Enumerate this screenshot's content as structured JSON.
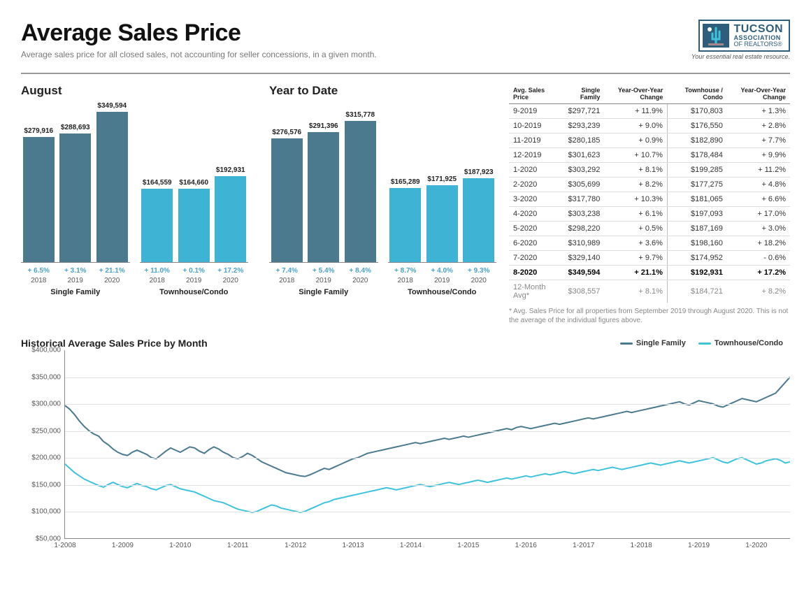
{
  "header": {
    "title": "Average Sales Price",
    "subtitle": "Average sales price for all closed sales, not accounting for seller concessions, in a given month."
  },
  "logo": {
    "line1": "TUCSON",
    "line2": "ASSOCIATION",
    "line3": "OF REALTORS®",
    "tagline": "Your essential real estate resource."
  },
  "colors": {
    "bar_dark": "#4b7a8f",
    "bar_light": "#3fb3d3",
    "line_sf": "#4b7a8f",
    "line_tc": "#3fc3dd",
    "grid": "#e3e3e3",
    "axis": "#888888",
    "pct_text": "#4aa3c7"
  },
  "barCharts": {
    "ymax": 360000,
    "sections": [
      {
        "title": "August",
        "groups": [
          {
            "label": "Single Family",
            "color": "#4b7a8f",
            "bars": [
              {
                "year": "2018",
                "value": 279916,
                "label": "$279,916",
                "pct": "+ 6.5%"
              },
              {
                "year": "2019",
                "value": 288693,
                "label": "$288,693",
                "pct": "+ 3.1%"
              },
              {
                "year": "2020",
                "value": 349594,
                "label": "$349,594",
                "pct": "+ 21.1%"
              }
            ]
          },
          {
            "label": "Townhouse/Condo",
            "color": "#3fb3d3",
            "bars": [
              {
                "year": "2018",
                "value": 164559,
                "label": "$164,559",
                "pct": "+ 11.0%"
              },
              {
                "year": "2019",
                "value": 164660,
                "label": "$164,660",
                "pct": "+ 0.1%"
              },
              {
                "year": "2020",
                "value": 192931,
                "label": "$192,931",
                "pct": "+ 17.2%"
              }
            ]
          }
        ]
      },
      {
        "title": "Year to Date",
        "groups": [
          {
            "label": "Single Family",
            "color": "#4b7a8f",
            "bars": [
              {
                "year": "2018",
                "value": 276576,
                "label": "$276,576",
                "pct": "+ 7.4%"
              },
              {
                "year": "2019",
                "value": 291396,
                "label": "$291,396",
                "pct": "+ 5.4%"
              },
              {
                "year": "2020",
                "value": 315778,
                "label": "$315,778",
                "pct": "+ 8.4%"
              }
            ]
          },
          {
            "label": "Townhouse/Condo",
            "color": "#3fb3d3",
            "bars": [
              {
                "year": "2018",
                "value": 165289,
                "label": "$165,289",
                "pct": "+ 8.7%"
              },
              {
                "year": "2019",
                "value": 171925,
                "label": "$171,925",
                "pct": "+ 4.0%"
              },
              {
                "year": "2020",
                "value": 187923,
                "label": "$187,923",
                "pct": "+ 9.3%"
              }
            ]
          }
        ]
      }
    ]
  },
  "table": {
    "headers": [
      "Avg. Sales Price",
      "Single Family",
      "Year-Over-Year Change",
      "Townhouse / Condo",
      "Year-Over-Year Change"
    ],
    "rows": [
      {
        "period": "9-2019",
        "sf": "$297,721",
        "sfc": "+ 11.9%",
        "tc": "$170,803",
        "tcc": "+ 1.3%"
      },
      {
        "period": "10-2019",
        "sf": "$293,239",
        "sfc": "+ 9.0%",
        "tc": "$176,550",
        "tcc": "+ 2.8%"
      },
      {
        "period": "11-2019",
        "sf": "$280,185",
        "sfc": "+ 0.9%",
        "tc": "$182,890",
        "tcc": "+ 7.7%"
      },
      {
        "period": "12-2019",
        "sf": "$301,623",
        "sfc": "+ 10.7%",
        "tc": "$178,484",
        "tcc": "+ 9.9%"
      },
      {
        "period": "1-2020",
        "sf": "$303,292",
        "sfc": "+ 8.1%",
        "tc": "$199,285",
        "tcc": "+ 11.2%"
      },
      {
        "period": "2-2020",
        "sf": "$305,699",
        "sfc": "+ 8.2%",
        "tc": "$177,275",
        "tcc": "+ 4.8%"
      },
      {
        "period": "3-2020",
        "sf": "$317,780",
        "sfc": "+ 10.3%",
        "tc": "$181,065",
        "tcc": "+ 6.6%"
      },
      {
        "period": "4-2020",
        "sf": "$303,238",
        "sfc": "+ 6.1%",
        "tc": "$197,093",
        "tcc": "+ 17.0%"
      },
      {
        "period": "5-2020",
        "sf": "$298,220",
        "sfc": "+ 0.5%",
        "tc": "$187,169",
        "tcc": "+ 3.0%"
      },
      {
        "period": "6-2020",
        "sf": "$310,989",
        "sfc": "+ 3.6%",
        "tc": "$198,160",
        "tcc": "+ 18.2%"
      },
      {
        "period": "7-2020",
        "sf": "$329,140",
        "sfc": "+ 9.7%",
        "tc": "$174,952",
        "tcc": "- 0.6%"
      },
      {
        "period": "8-2020",
        "sf": "$349,594",
        "sfc": "+ 21.1%",
        "tc": "$192,931",
        "tcc": "+ 17.2%",
        "bold": true
      }
    ],
    "avg": {
      "period": "12-Month Avg*",
      "sf": "$308,557",
      "sfc": "+ 8.1%",
      "tc": "$184,721",
      "tcc": "+ 8.2%"
    },
    "footnote": "* Avg. Sales Price for all properties from September 2019 through August 2020. This is not the average of the individual figures above."
  },
  "lineChart": {
    "title": "Historical Average Sales Price by Month",
    "legend": [
      {
        "label": "Single Family",
        "color": "#4b7a8f"
      },
      {
        "label": "Townhouse/Condo",
        "color": "#3fc3dd"
      }
    ],
    "ymin": 50000,
    "ymax": 400000,
    "ytick": 50000,
    "ylabels": [
      "$50,000",
      "$100,000",
      "$150,000",
      "$200,000",
      "$250,000",
      "$300,000",
      "$350,000",
      "$400,000"
    ],
    "xlabels": [
      "1-2008",
      "1-2009",
      "1-2010",
      "1-2011",
      "1-2012",
      "1-2013",
      "1-2014",
      "1-2015",
      "1-2016",
      "1-2017",
      "1-2018",
      "1-2019",
      "1-2020"
    ],
    "xcount": 152,
    "series": {
      "sf": [
        297,
        290,
        280,
        268,
        258,
        250,
        244,
        240,
        230,
        224,
        216,
        210,
        206,
        204,
        210,
        214,
        210,
        206,
        200,
        198,
        205,
        212,
        218,
        214,
        210,
        215,
        220,
        218,
        212,
        208,
        215,
        220,
        216,
        210,
        206,
        200,
        198,
        202,
        208,
        204,
        198,
        192,
        188,
        184,
        180,
        176,
        172,
        170,
        168,
        166,
        165,
        168,
        172,
        176,
        180,
        178,
        182,
        186,
        190,
        194,
        198,
        200,
        204,
        208,
        210,
        212,
        214,
        216,
        218,
        220,
        222,
        224,
        226,
        228,
        226,
        228,
        230,
        232,
        234,
        236,
        234,
        236,
        238,
        240,
        238,
        240,
        242,
        244,
        246,
        248,
        250,
        252,
        254,
        252,
        256,
        258,
        256,
        254,
        256,
        258,
        260,
        262,
        264,
        262,
        264,
        266,
        268,
        270,
        272,
        274,
        272,
        274,
        276,
        278,
        280,
        282,
        284,
        286,
        284,
        286,
        288,
        290,
        292,
        294,
        296,
        298,
        300,
        302,
        304,
        300,
        298,
        302,
        306,
        304,
        302,
        300,
        296,
        294,
        298,
        302,
        306,
        310,
        308,
        306,
        304,
        308,
        312,
        316,
        320,
        330,
        340,
        350
      ],
      "tc": [
        188,
        180,
        172,
        166,
        160,
        156,
        152,
        148,
        145,
        150,
        154,
        150,
        146,
        144,
        148,
        152,
        148,
        146,
        142,
        140,
        144,
        148,
        150,
        146,
        142,
        140,
        138,
        136,
        132,
        128,
        124,
        120,
        118,
        116,
        112,
        108,
        104,
        102,
        100,
        98,
        100,
        104,
        108,
        112,
        110,
        106,
        104,
        102,
        100,
        98,
        100,
        104,
        108,
        112,
        116,
        118,
        122,
        124,
        126,
        128,
        130,
        132,
        134,
        136,
        138,
        140,
        142,
        144,
        142,
        140,
        142,
        144,
        146,
        148,
        150,
        148,
        146,
        148,
        150,
        152,
        154,
        152,
        150,
        152,
        154,
        156,
        158,
        156,
        154,
        156,
        158,
        160,
        162,
        160,
        162,
        164,
        166,
        164,
        166,
        168,
        170,
        168,
        170,
        172,
        174,
        172,
        170,
        172,
        174,
        176,
        178,
        176,
        178,
        180,
        182,
        180,
        178,
        180,
        182,
        184,
        186,
        188,
        190,
        188,
        186,
        188,
        190,
        192,
        194,
        192,
        190,
        192,
        194,
        196,
        198,
        200,
        196,
        192,
        190,
        194,
        198,
        200,
        196,
        192,
        188,
        190,
        194,
        196,
        198,
        195,
        190,
        192
      ]
    }
  }
}
